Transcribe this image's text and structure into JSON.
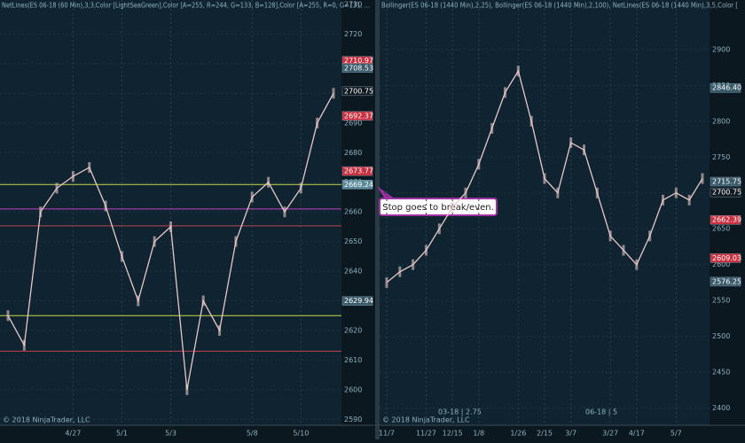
{
  "chart_data": [
    {
      "type": "line",
      "title": "NetLines(ES 06-18 (60 Min),3,3,Color [LightSeaGreen],Color [A=255, R=244, G=133, B=128],Color [A=255, R=0, G=131, ...",
      "footer": "© 2018 NinjaTrader, LLC",
      "annotation": "Stop goes to break/even.",
      "categories": [
        null,
        null,
        null,
        null,
        "4/27",
        null,
        null,
        "5/1",
        null,
        null,
        "5/3",
        null,
        null,
        null,
        null,
        "5/8",
        null,
        null,
        "5/10",
        null,
        null
      ],
      "series": [
        {
          "name": "ES 06-18 (60 Min)",
          "color": "#e8c8c8",
          "values": [
            2625,
            2615,
            2660,
            2668,
            2672,
            2675,
            2662,
            2645,
            2630,
            2650,
            2655,
            2600,
            2630,
            2620,
            2650,
            2665,
            2670,
            2660,
            2668,
            2690,
            2700
          ]
        }
      ],
      "ylim": [
        2588,
        2731.5
      ],
      "yticks": [
        2590,
        2600,
        2610,
        2620,
        2630,
        2640,
        2650,
        2660,
        2670,
        2680,
        2690,
        2700,
        2710,
        2720,
        2730
      ],
      "levels": [
        {
          "value": 2669.24,
          "color": "#c8d84a"
        },
        {
          "value": 2661,
          "color": "#c040c0"
        },
        {
          "value": 2655.3,
          "color": "#c04050"
        },
        {
          "value": 2625,
          "color": "#c8d84a"
        },
        {
          "value": 2613,
          "color": "#c04050"
        }
      ],
      "tags": [
        {
          "value": 2710.97,
          "color": "#c83040"
        },
        {
          "value": 2708.53,
          "color": "#3a5a6a"
        },
        {
          "value": 2700.75,
          "color": "#101820"
        },
        {
          "value": 2692.37,
          "color": "#c83040"
        },
        {
          "value": 2673.77,
          "color": "#c83040"
        },
        {
          "value": 2669.24,
          "color": "#5a8a9a"
        },
        {
          "value": 2629.94,
          "color": "#3a5a6a"
        }
      ]
    },
    {
      "type": "line",
      "title": "Bollinger(ES 06-18 (1440 Min),2,25), Bollinger(ES 06-18 (1440 Min),2,100), NetLines(ES 06-18 (1440 Min),3,5,Color [",
      "footer": "© 2018 NinjaTrader, LLC",
      "annotations": [
        "03-18 | 2.75",
        "06-18 | 5"
      ],
      "categories": [
        "11/7",
        null,
        null,
        "11/27",
        null,
        "12/15",
        null,
        "1/8",
        null,
        null,
        "1/26",
        null,
        "2/15",
        null,
        "3/7",
        null,
        null,
        "3/27",
        null,
        "4/17",
        null,
        null,
        "5/7",
        null,
        null
      ],
      "series": [
        {
          "name": "ES 06-18 (1440 Min)",
          "color": "#e8c8c8",
          "values": [
            2575,
            2590,
            2600,
            2620,
            2650,
            2680,
            2700,
            2740,
            2790,
            2840,
            2870,
            2800,
            2720,
            2700,
            2770,
            2760,
            2700,
            2640,
            2620,
            2600,
            2640,
            2690,
            2700,
            2690,
            2720
          ]
        }
      ],
      "ylim": [
        2376,
        2969
      ],
      "yticks": [
        2400,
        2450,
        2500,
        2550,
        2600,
        2650,
        2700,
        2750,
        2800,
        2850,
        2900
      ],
      "tags": [
        {
          "value": 2846.4,
          "label": "2846.40",
          "color": "#3a5a6a"
        },
        {
          "value": 2715.75,
          "color": "#3a5a6a"
        },
        {
          "value": 2700.75,
          "color": "#101820"
        },
        {
          "value": 2662.39,
          "color": "#c83040"
        },
        {
          "value": 2609.03,
          "color": "#c83040"
        },
        {
          "value": 2576.25,
          "color": "#3a5a6a"
        }
      ]
    }
  ]
}
